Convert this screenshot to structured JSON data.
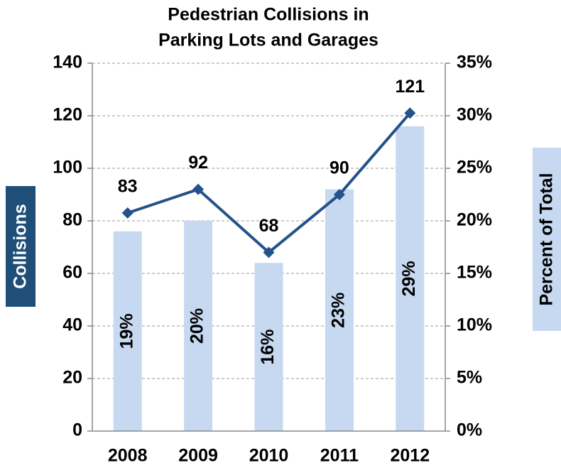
{
  "chart_data": {
    "type": "bar-line",
    "title": [
      "Pedestrian Collisions in",
      "Parking Lots and Garages"
    ],
    "ylabel": "Collisions",
    "y2label": "Percent of Total",
    "categories": [
      "2008",
      "2009",
      "2010",
      "2011",
      "2012"
    ],
    "series": [
      {
        "type": "bar",
        "axis": "y2",
        "color": "#c6d9f1",
        "values": [
          19,
          20,
          16,
          23,
          29
        ],
        "value_labels": [
          "19%",
          "20%",
          "16%",
          "23%",
          "29%"
        ]
      },
      {
        "type": "line",
        "axis": "y",
        "color": "#24528a",
        "values": [
          83,
          92,
          68,
          90,
          121
        ]
      }
    ],
    "ylim": [
      0,
      140
    ],
    "yticks": [
      0,
      20,
      40,
      60,
      80,
      100,
      120,
      140
    ],
    "y2lim": [
      0,
      35
    ],
    "y2ticks": [
      {
        "value": 0,
        "label": "0%"
      },
      {
        "value": 5,
        "label": "5%"
      },
      {
        "value": 10,
        "label": "10%"
      },
      {
        "value": 15,
        "label": "15%"
      },
      {
        "value": 20,
        "label": "20%"
      },
      {
        "value": 25,
        "label": "25%"
      },
      {
        "value": 30,
        "label": "30%"
      },
      {
        "value": 35,
        "label": "35%"
      }
    ],
    "grid": true
  }
}
